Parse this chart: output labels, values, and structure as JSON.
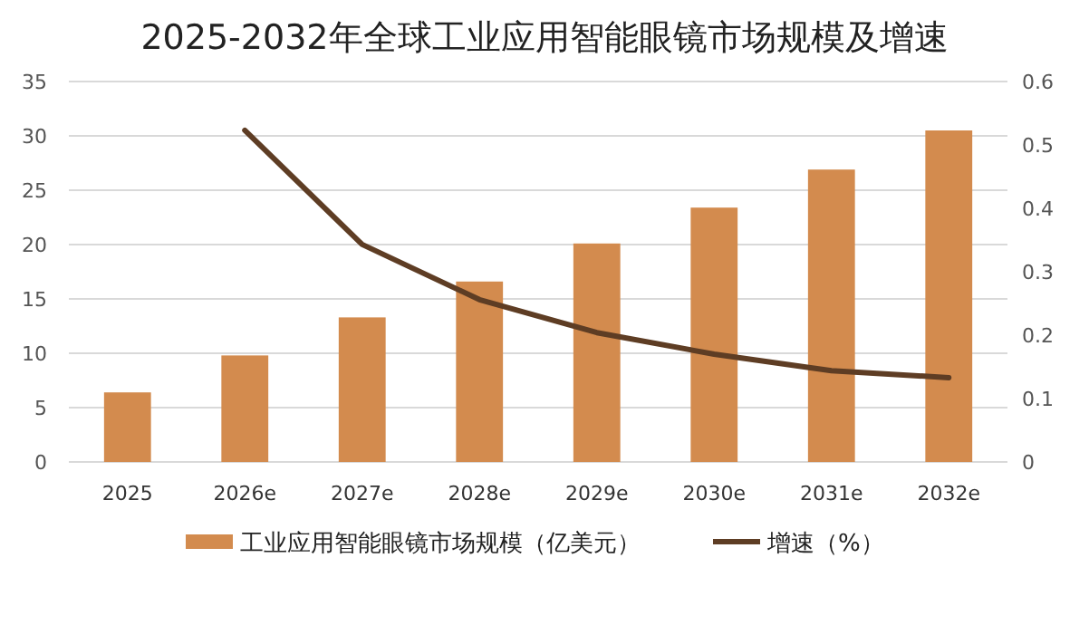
{
  "chart_data": {
    "type": "bar",
    "title": "2025-2032年全球工业应用智能眼镜市场规模及增速",
    "categories": [
      "2025",
      "2026e",
      "2027e",
      "2028e",
      "2029e",
      "2030e",
      "2031e",
      "2032e"
    ],
    "series": [
      {
        "name": "工业应用智能眼镜市场规模（亿美元）",
        "color": "#d38b4e",
        "values": [
          6.4,
          9.8,
          13.3,
          16.6,
          20.1,
          23.4,
          26.9,
          30.5
        ]
      },
      {
        "name": "增速（%）",
        "type": "line",
        "axis": "y2",
        "color": "#5e3d24",
        "values": [
          null,
          0.523,
          0.343,
          0.256,
          0.204,
          0.17,
          0.144,
          0.133
        ]
      }
    ],
    "ylim": [
      0,
      35
    ],
    "yticks": [
      0,
      5,
      10,
      15,
      20,
      25,
      30,
      35
    ],
    "y2lim": [
      0,
      0.6
    ],
    "y2ticks": [
      0,
      0.1,
      0.2,
      0.3,
      0.4,
      0.5,
      0.6
    ],
    "grid": "y",
    "legend": "bottom",
    "marker": "none"
  }
}
